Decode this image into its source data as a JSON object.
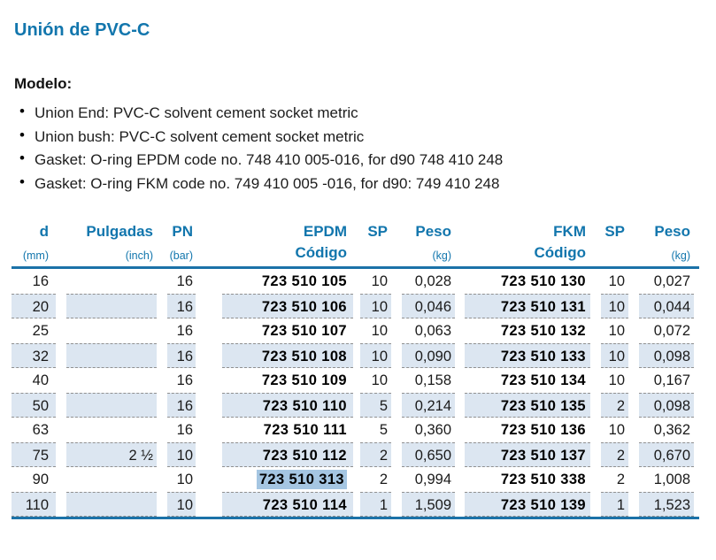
{
  "document": {
    "title": "Unión de PVC-C",
    "model_heading": "Modelo:",
    "model_items": [
      "Union End: PVC-C solvent cement socket metric",
      "Union bush: PVC-C solvent cement socket metric",
      "Gasket: O-ring EPDM code no. 748 410 005-016, for d90 748 410 248",
      "Gasket: O-ring FKM code no. 749 410 005 -016, for d90: 749 410 248"
    ]
  },
  "table": {
    "header": [
      {
        "label": "d",
        "unit": "(mm)"
      },
      {
        "label": "Pulgadas",
        "unit": "(inch)"
      },
      {
        "label": "PN",
        "unit": "(bar)"
      },
      {
        "label": "EPDM",
        "unit": "Código"
      },
      {
        "label": "SP",
        "unit": ""
      },
      {
        "label": "Peso",
        "unit": "(kg)"
      },
      {
        "label": "FKM",
        "unit": "Código"
      },
      {
        "label": "SP",
        "unit": ""
      },
      {
        "label": "Peso",
        "unit": "(kg)"
      }
    ],
    "rows": [
      {
        "shaded": false,
        "cells": {
          "d": "16",
          "pulgadas": "",
          "pn": "16",
          "epdm_codigo": "723 510 105",
          "sp_epdm": "10",
          "peso_epdm": "0,028",
          "fkm_codigo": "723 510 130",
          "sp_fkm": "10",
          "peso_fkm": "0,027"
        }
      },
      {
        "shaded": true,
        "cells": {
          "d": "20",
          "pulgadas": "",
          "pn": "16",
          "epdm_codigo": "723 510 106",
          "sp_epdm": "10",
          "peso_epdm": "0,046",
          "fkm_codigo": "723 510 131",
          "sp_fkm": "10",
          "peso_fkm": "0,044"
        }
      },
      {
        "shaded": false,
        "cells": {
          "d": "25",
          "pulgadas": "",
          "pn": "16",
          "epdm_codigo": "723 510 107",
          "sp_epdm": "10",
          "peso_epdm": "0,063",
          "fkm_codigo": "723 510 132",
          "sp_fkm": "10",
          "peso_fkm": "0,072"
        }
      },
      {
        "shaded": true,
        "cells": {
          "d": "32",
          "pulgadas": "",
          "pn": "16",
          "epdm_codigo": "723 510 108",
          "sp_epdm": "10",
          "peso_epdm": "0,090",
          "fkm_codigo": "723 510 133",
          "sp_fkm": "10",
          "peso_fkm": "0,098"
        }
      },
      {
        "shaded": false,
        "cells": {
          "d": "40",
          "pulgadas": "",
          "pn": "16",
          "epdm_codigo": "723 510 109",
          "sp_epdm": "10",
          "peso_epdm": "0,158",
          "fkm_codigo": "723 510 134",
          "sp_fkm": "10",
          "peso_fkm": "0,167"
        }
      },
      {
        "shaded": true,
        "cells": {
          "d": "50",
          "pulgadas": "",
          "pn": "16",
          "epdm_codigo": "723 510 110",
          "sp_epdm": "5",
          "peso_epdm": "0,214",
          "fkm_codigo": "723 510 135",
          "sp_fkm": "2",
          "peso_fkm": "0,098"
        }
      },
      {
        "shaded": false,
        "cells": {
          "d": "63",
          "pulgadas": "",
          "pn": "16",
          "epdm_codigo": "723 510 111",
          "sp_epdm": "5",
          "peso_epdm": "0,360",
          "fkm_codigo": "723 510 136",
          "sp_fkm": "10",
          "peso_fkm": "0,362"
        }
      },
      {
        "shaded": true,
        "cells": {
          "d": "75",
          "pulgadas": "2 ½",
          "pn": "10",
          "epdm_codigo": "723 510 112",
          "sp_epdm": "2",
          "peso_epdm": "0,650",
          "fkm_codigo": "723 510 137",
          "sp_fkm": "2",
          "peso_fkm": "0,670"
        }
      },
      {
        "shaded": false,
        "highlight": "epdm_codigo",
        "cells": {
          "d": "90",
          "pulgadas": "",
          "pn": "10",
          "epdm_codigo": "723 510 313",
          "sp_epdm": "2",
          "peso_epdm": "0,994",
          "fkm_codigo": "723 510 338",
          "sp_fkm": "2",
          "peso_fkm": "1,008"
        }
      },
      {
        "shaded": true,
        "cells": {
          "d": "110",
          "pulgadas": "",
          "pn": "10",
          "epdm_codigo": "723 510 114",
          "sp_epdm": "1",
          "peso_epdm": "1,509",
          "fkm_codigo": "723 510 139",
          "sp_fkm": "1",
          "peso_fkm": "1,523"
        }
      }
    ]
  },
  "colors": {
    "accent_blue": "#1276ad",
    "rule_blue": "#1b72a8",
    "row_shade": "#dce6f1",
    "selection_highlight": "#a5c6e2",
    "text": "#1a1a1a"
  }
}
